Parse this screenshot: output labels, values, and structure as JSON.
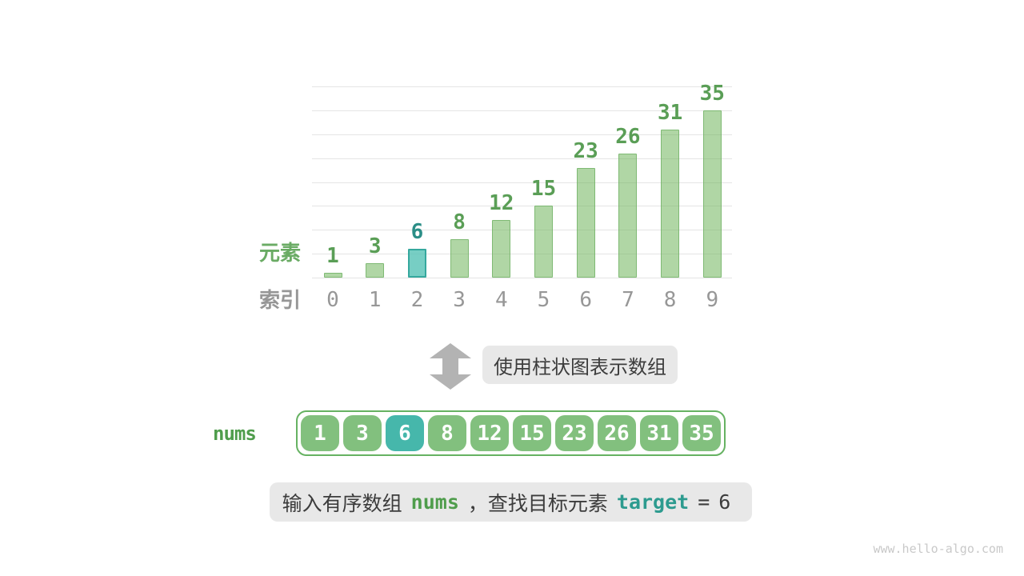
{
  "chart_data": {
    "type": "bar",
    "title": "",
    "categories": [
      "0",
      "1",
      "2",
      "3",
      "4",
      "5",
      "6",
      "7",
      "8",
      "9"
    ],
    "values": [
      1,
      3,
      6,
      8,
      12,
      15,
      23,
      26,
      31,
      35
    ],
    "highlight_index": 2,
    "ylabel": "元素",
    "xlabel": "索引",
    "ylim": [
      0,
      40
    ],
    "gridline_step": 5,
    "grid": true,
    "legend": "none"
  },
  "colors": {
    "bar_green_fill": "#b2d7ab",
    "bar_green_border": "#8cc083",
    "bar_teal_fill": "#7fd1c8",
    "bar_teal_border": "#35a89e",
    "value_label_green": "#5a9e56",
    "value_label_teal": "#2b8e87",
    "axis_label_green": "#6aab64",
    "axis_label_gray": "#969696",
    "cell_green": "#82c07e",
    "cell_teal": "#46b7ab",
    "array_border_green": "#66b262",
    "code_green": "#4f9d4c",
    "code_teal": "#2d9b8f",
    "note_box_bg": "#e8e8e8",
    "arrow_gray": "#b3b3b3"
  },
  "transform_note": {
    "label": "使用柱状图表示数组"
  },
  "array_section": {
    "label": "nums",
    "values": [
      "1",
      "3",
      "6",
      "8",
      "12",
      "15",
      "23",
      "26",
      "31",
      "35"
    ],
    "highlight_index": 2
  },
  "caption": {
    "part1": "输入有序数组",
    "code1": "nums",
    "part2": "，查找目标元素",
    "code2": "target",
    "eq": "=",
    "value": "6"
  },
  "watermark": "www.hello-algo.com"
}
